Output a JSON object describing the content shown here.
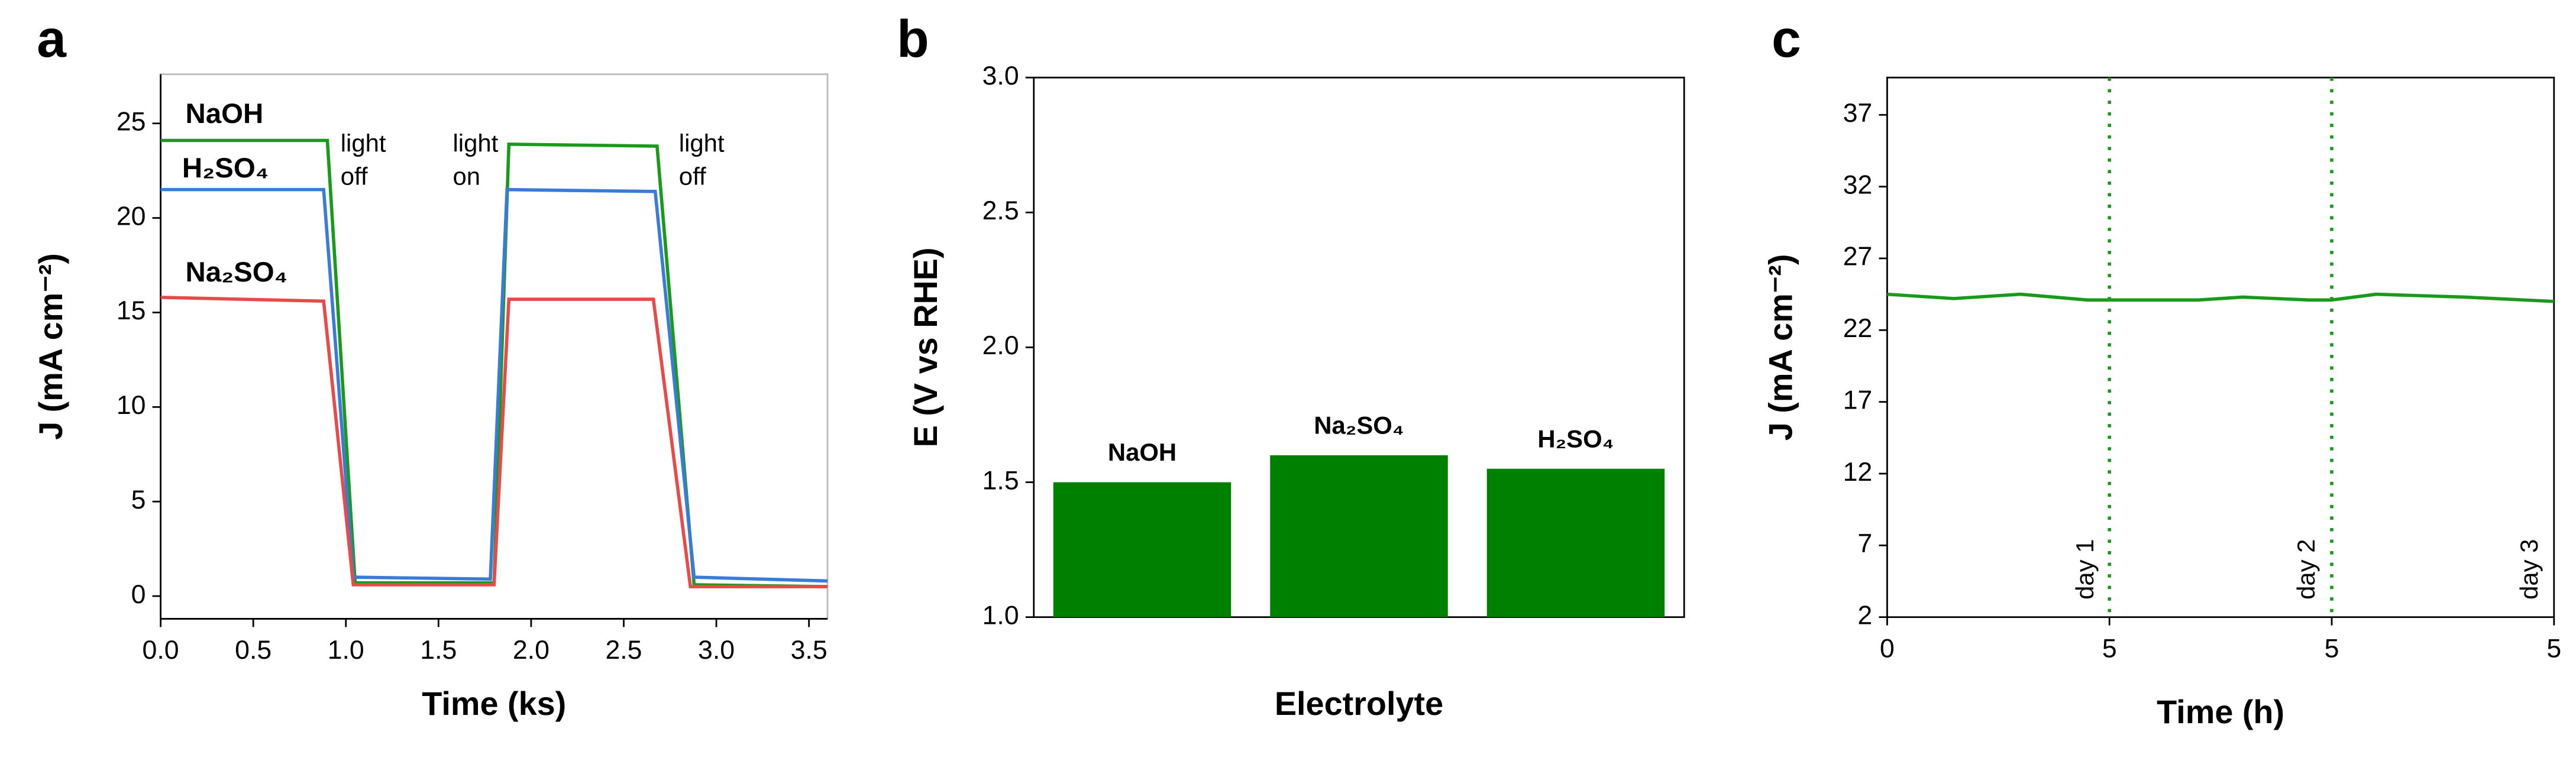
{
  "chart_data": [
    {
      "type": "line",
      "panel": "a",
      "xlabel": "Time (ks)",
      "ylabel": "J (mA cm⁻²)",
      "xlim": [
        0,
        3.6
      ],
      "ylim": [
        -1.2,
        27.6
      ],
      "xticks": [
        {
          "value": 0,
          "label": "0.0"
        },
        0.5,
        {
          "value": 1,
          "label": "1.0"
        },
        1.5,
        {
          "value": 2,
          "label": "2.0"
        },
        2.5,
        {
          "value": 3,
          "label": "3.0"
        },
        3.5
      ],
      "yticks": [
        0,
        5,
        10,
        15,
        20,
        25
      ],
      "series": [
        {
          "name": "NaOH",
          "color": "#1a9a1a",
          "x": [
            0,
            0.9,
            1.05,
            1.8,
            1.88,
            2.68,
            2.88,
            3.6
          ],
          "values": [
            24.1,
            24.1,
            0.7,
            0.7,
            23.9,
            23.8,
            0.6,
            0.5
          ]
        },
        {
          "name": "H₂SO₄",
          "color": "#3a7ad8",
          "x": [
            0,
            0.88,
            1.04,
            1.78,
            1.87,
            2.67,
            2.88,
            3.6
          ],
          "values": [
            21.5,
            21.5,
            1.0,
            0.9,
            21.5,
            21.4,
            1.0,
            0.8
          ]
        },
        {
          "name": "Na₂SO₄",
          "color": "#e84a4a",
          "x": [
            0,
            0.88,
            1.04,
            1.8,
            1.88,
            2.66,
            2.86,
            3.6
          ],
          "values": [
            15.8,
            15.6,
            0.6,
            0.6,
            15.7,
            15.7,
            0.5,
            0.5
          ]
        }
      ],
      "annotations": [
        [
          "light",
          "off"
        ],
        [
          "light",
          "on"
        ],
        [
          "light",
          "off"
        ]
      ]
    },
    {
      "type": "bar",
      "panel": "b",
      "xlabel": "Electrolyte",
      "ylabel": "E (V vs RHE)",
      "categories": [
        "NaOH",
        "Na₂SO₄",
        "H₂SO₄"
      ],
      "values": [
        1.5,
        1.6,
        1.55
      ],
      "color": "#008000",
      "ylim": [
        1,
        3
      ],
      "yticks": [
        {
          "value": 1,
          "label": "1.0"
        },
        1.5,
        {
          "value": 2,
          "label": "2.0"
        },
        2.5,
        {
          "value": 3,
          "label": "3.0"
        }
      ]
    },
    {
      "type": "line",
      "panel": "c",
      "xlabel": "Time (h)",
      "ylabel": "J (mA cm⁻²)",
      "xlim": [
        0,
        15
      ],
      "ylim": [
        2,
        39.6
      ],
      "xticks": [
        0,
        5,
        {
          "value": 10,
          "label": "5"
        },
        {
          "value": 15,
          "label": "5"
        }
      ],
      "yticks": [
        2,
        7,
        12,
        17,
        22,
        27,
        32,
        37
      ],
      "x": [
        0,
        1.5,
        3,
        4.5,
        7,
        8,
        9.5,
        10,
        11,
        13,
        15
      ],
      "series": [
        {
          "name": null,
          "color": "#1a9a1a",
          "values": [
            24.5,
            24.2,
            24.5,
            24.1,
            24.1,
            24.3,
            24.1,
            24.1,
            24.5,
            24.3,
            24.0
          ]
        }
      ],
      "vlines": [
        5,
        10
      ],
      "annotations": [
        "day 1",
        "day 2",
        "day 3"
      ]
    }
  ]
}
